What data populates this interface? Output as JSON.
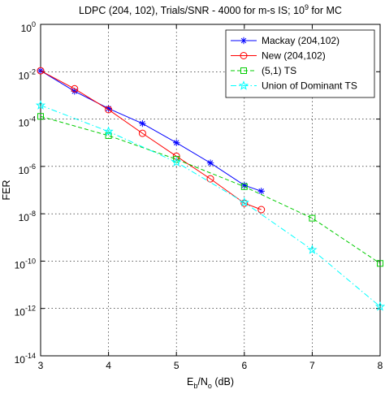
{
  "chart_data": {
    "type": "line",
    "title": "LDPC (204, 102), Trials/SNR - 4000 for m-s IS; 10^9 for MC",
    "title_parts": {
      "main": "LDPC (204, 102), Trials/SNR - 4000 for m-s IS; 10",
      "superscript": "9",
      "tail": " for MC"
    },
    "xlabel_parts": {
      "E": "E",
      "b": "b",
      "slash": "/N",
      "o": "o",
      "unit": " (dB)"
    },
    "ylabel": "FER",
    "x_scale": "linear",
    "y_scale": "log",
    "xlim": [
      3,
      8
    ],
    "ylim": [
      1e-14,
      1
    ],
    "x_ticks": [
      3,
      4,
      5,
      6,
      7,
      8
    ],
    "y_ticks": [
      {
        "value": 1,
        "base": "10",
        "exp": "0"
      },
      {
        "value": 0.01,
        "base": "10",
        "exp": "-2"
      },
      {
        "value": 0.0001,
        "base": "10",
        "exp": "-4"
      },
      {
        "value": 1e-06,
        "base": "10",
        "exp": "-6"
      },
      {
        "value": 1e-08,
        "base": "10",
        "exp": "-8"
      },
      {
        "value": 1e-10,
        "base": "10",
        "exp": "-10"
      },
      {
        "value": 1e-12,
        "base": "10",
        "exp": "-12"
      },
      {
        "value": 1e-14,
        "base": "10",
        "exp": "-14"
      }
    ],
    "grid": true,
    "legend_position": "top-right",
    "series": [
      {
        "name": "Mackay (204,102)",
        "color": "#0000ff",
        "line": "solid",
        "marker": "asterisk",
        "x": [
          3,
          3.5,
          4,
          4.5,
          5,
          5.5,
          6,
          6.25
        ],
        "y": [
          0.011,
          0.0015,
          0.00028,
          6.5e-05,
          1e-05,
          1.4e-06,
          1.6e-07,
          9e-08
        ]
      },
      {
        "name": "New (204,102)",
        "color": "#ff0000",
        "line": "solid",
        "marker": "circle",
        "x": [
          3,
          3.5,
          4,
          4.5,
          5,
          5.5,
          6,
          6.25
        ],
        "y": [
          0.011,
          0.0019,
          0.00025,
          2.5e-05,
          2.7e-06,
          3e-07,
          2.8e-08,
          1.5e-08
        ]
      },
      {
        "name": "(5,1) TS",
        "color": "#00cc00",
        "line": "dashed",
        "marker": "square",
        "x": [
          3,
          4,
          5,
          6,
          7,
          8
        ],
        "y": [
          0.00013,
          2e-05,
          2e-06,
          1.4e-07,
          6.5e-09,
          8e-11
        ]
      },
      {
        "name": "Union of Dominant TS",
        "color": "#00ffff",
        "line": "dashdot",
        "marker": "pentagram",
        "x": [
          3,
          4,
          5,
          6,
          7,
          8
        ],
        "y": [
          0.00038,
          3e-05,
          1.5e-06,
          3e-08,
          3e-10,
          1.2e-12
        ]
      }
    ]
  }
}
